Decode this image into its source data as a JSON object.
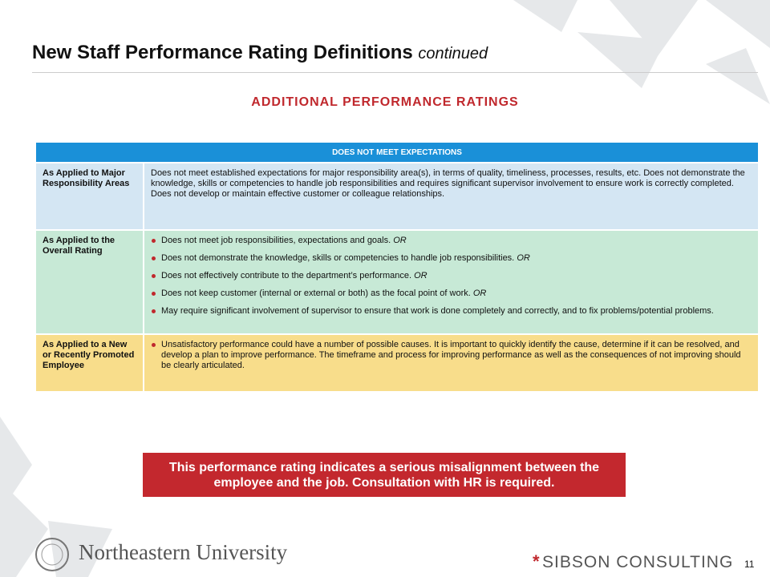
{
  "header": {
    "title": "New Staff Performance Rating Definitions",
    "title_suffix": "continued"
  },
  "subtitle": "ADDITIONAL PERFORMANCE RATINGS",
  "table": {
    "header": "DOES NOT MEET EXPECTATIONS",
    "rows": [
      {
        "label": "As Applied to Major Responsibility Areas",
        "text": "Does not meet established expectations for major responsibility area(s), in terms of quality, timeliness, processes, results, etc. Does not demonstrate the knowledge, skills or competencies to handle job responsibilities and requires significant supervisor involvement to ensure work is correctly completed. Does not develop or maintain effective customer or colleague relationships."
      },
      {
        "label": "As Applied to the Overall Rating",
        "bullets": [
          {
            "text": "Does not meet job responsibilities, expectations and goals.",
            "connector": "OR"
          },
          {
            "text": "Does not demonstrate the knowledge, skills or competencies to handle job responsibilities.",
            "connector": "OR"
          },
          {
            "text": "Does not effectively contribute to the department’s performance.",
            "connector": "OR"
          },
          {
            "text": "Does not keep customer (internal  or external  or both) as the focal point of work.",
            "connector": "OR"
          },
          {
            "text": "May require significant involvement of supervisor to ensure that work is done completely and correctly, and to fix problems/potential problems."
          }
        ]
      },
      {
        "label": "As Applied to a New or Recently Promoted Employee",
        "bullets": [
          {
            "text": "Unsatisfactory performance could have a number of possible causes. It is important to quickly identify the cause, determine if it can be resolved, and develop a plan to improve performance. The timeframe and process for improving performance as well as the consequences of not improving should be clearly articulated."
          }
        ]
      }
    ]
  },
  "callout": "This performance rating indicates a serious misalignment between the employee and the job. Consultation with HR is required.",
  "footer": {
    "university": "Northeastern University",
    "consultant": "SIBSON CONSULTING",
    "page": "11"
  }
}
